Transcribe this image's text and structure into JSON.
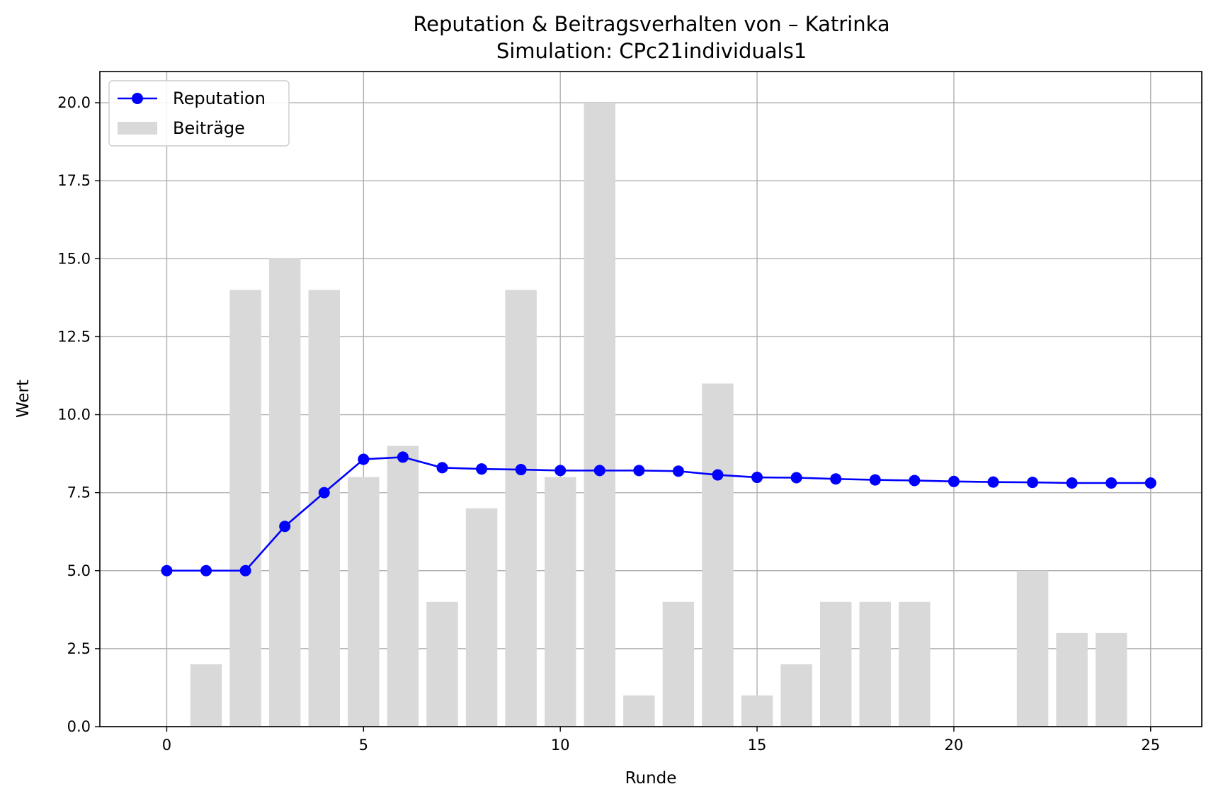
{
  "chart_data": {
    "type": "bar+line",
    "title": "Reputation & Beitragsverhalten von – Katrinka",
    "subtitle": "Simulation: CPc21individuals1",
    "xlabel": "Runde",
    "ylabel": "Wert",
    "xlim": [
      -1.7,
      26.3
    ],
    "ylim": [
      0,
      21
    ],
    "xticks": [
      0,
      5,
      10,
      15,
      20,
      25
    ],
    "xtick_labels": [
      "0",
      "5",
      "10",
      "15",
      "20",
      "25"
    ],
    "yticks": [
      0,
      2.5,
      5,
      7.5,
      10,
      12.5,
      15,
      17.5,
      20
    ],
    "ytick_labels": [
      "0.0",
      "2.5",
      "5.0",
      "7.5",
      "10.0",
      "12.5",
      "15.0",
      "17.5",
      "20.0"
    ],
    "grid": true,
    "legend_position": "upper-left",
    "x": [
      0,
      1,
      2,
      3,
      4,
      5,
      6,
      7,
      8,
      9,
      10,
      11,
      12,
      13,
      14,
      15,
      16,
      17,
      18,
      19,
      20,
      21,
      22,
      23,
      24,
      25
    ],
    "series": [
      {
        "name": "Reputation",
        "kind": "line",
        "color": "#0000ff",
        "values": [
          5.0,
          5.0,
          5.0,
          6.42,
          7.5,
          8.57,
          8.64,
          8.3,
          8.26,
          8.24,
          8.21,
          8.21,
          8.21,
          8.19,
          8.07,
          7.99,
          7.98,
          7.94,
          7.91,
          7.89,
          7.86,
          7.84,
          7.83,
          7.81,
          7.81,
          7.81
        ]
      },
      {
        "name": "Beiträge",
        "kind": "bar",
        "color": "#d9d9d9",
        "values": [
          0,
          2,
          14,
          15,
          14,
          8,
          9,
          4,
          7,
          14,
          8,
          20,
          1,
          4,
          11,
          1,
          2,
          4,
          4,
          4,
          0,
          0,
          5,
          3,
          3,
          0
        ]
      }
    ]
  }
}
